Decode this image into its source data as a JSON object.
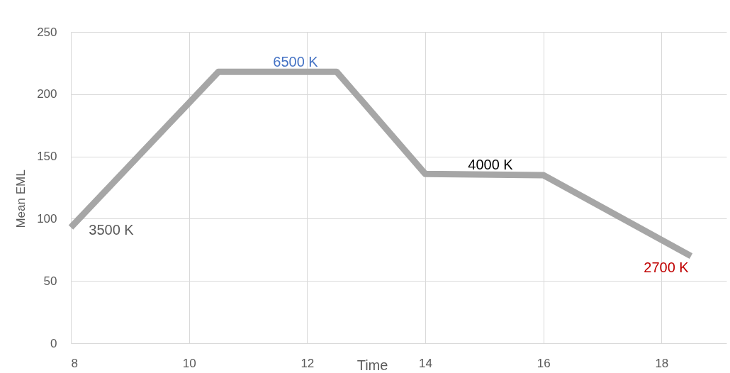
{
  "chart_data": {
    "type": "line",
    "xlabel": "Time",
    "ylabel": "Mean EML",
    "x": [
      8,
      10.5,
      12.5,
      14,
      16,
      18.5
    ],
    "series": [
      {
        "color": "#a6a6a6",
        "values": [
          93,
          218,
          218,
          136,
          135,
          70
        ]
      }
    ],
    "xlim": [
      8,
      19.1
    ],
    "xticks": [
      8,
      10,
      12,
      14,
      16,
      18
    ],
    "ylim": [
      0,
      250
    ],
    "yticks": [
      0,
      50,
      100,
      150,
      200,
      250
    ],
    "grid": true,
    "marker": "none",
    "line_style": "solid",
    "annotations": [
      "3500 K",
      "6500 K",
      "4000 K",
      "2700 K"
    ]
  }
}
